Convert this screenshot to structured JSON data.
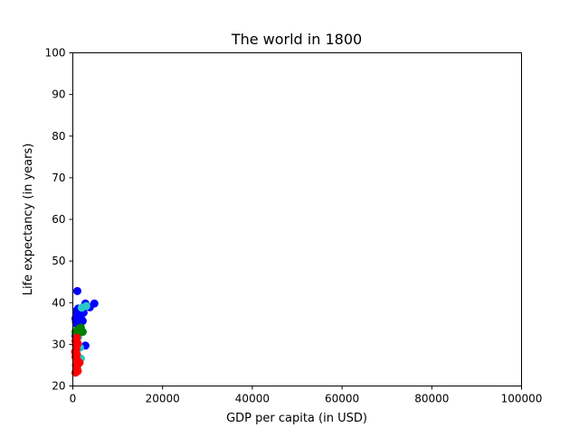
{
  "chart_data": {
    "type": "scatter",
    "title": "The world in 1800",
    "xlabel": "GDP per capita (in USD)",
    "ylabel": "Life expectancy (in years)",
    "xlim": [
      0,
      100000
    ],
    "ylim": [
      20,
      100
    ],
    "xticks": [
      0,
      20000,
      40000,
      60000,
      80000,
      100000
    ],
    "yticks": [
      20,
      30,
      40,
      50,
      60,
      70,
      80,
      90,
      100
    ],
    "grid": false,
    "colors": {
      "blue": "#0000ff",
      "cyan": "#2ac8c8",
      "green": "#008000",
      "red": "#ff0000"
    },
    "points": [
      {
        "x": 1000,
        "y": 42.8,
        "color": "blue"
      },
      {
        "x": 1200,
        "y": 38.6,
        "color": "blue"
      },
      {
        "x": 800,
        "y": 38.0,
        "color": "blue"
      },
      {
        "x": 1600,
        "y": 37.5,
        "color": "blue"
      },
      {
        "x": 2000,
        "y": 38.2,
        "color": "blue"
      },
      {
        "x": 900,
        "y": 37.0,
        "color": "blue"
      },
      {
        "x": 1400,
        "y": 36.6,
        "color": "blue"
      },
      {
        "x": 600,
        "y": 36.2,
        "color": "blue"
      },
      {
        "x": 1100,
        "y": 35.8,
        "color": "blue"
      },
      {
        "x": 1800,
        "y": 36.4,
        "color": "blue"
      },
      {
        "x": 700,
        "y": 35.4,
        "color": "blue"
      },
      {
        "x": 1300,
        "y": 35.0,
        "color": "blue"
      },
      {
        "x": 1000,
        "y": 34.6,
        "color": "blue"
      },
      {
        "x": 1500,
        "y": 34.2,
        "color": "blue"
      },
      {
        "x": 2400,
        "y": 37.6,
        "color": "blue"
      },
      {
        "x": 2800,
        "y": 39.8,
        "color": "blue"
      },
      {
        "x": 3800,
        "y": 38.9,
        "color": "blue"
      },
      {
        "x": 4800,
        "y": 39.8,
        "color": "blue"
      },
      {
        "x": 2800,
        "y": 29.7,
        "color": "blue"
      },
      {
        "x": 800,
        "y": 33.0,
        "color": "blue"
      },
      {
        "x": 1200,
        "y": 32.6,
        "color": "blue"
      },
      {
        "x": 600,
        "y": 32.0,
        "color": "blue"
      },
      {
        "x": 2200,
        "y": 35.6,
        "color": "blue"
      },
      {
        "x": 1600,
        "y": 33.6,
        "color": "blue"
      },
      {
        "x": 3000,
        "y": 39.2,
        "color": "cyan"
      },
      {
        "x": 2000,
        "y": 38.8,
        "color": "cyan"
      },
      {
        "x": 1200,
        "y": 31.8,
        "color": "cyan"
      },
      {
        "x": 1600,
        "y": 29.2,
        "color": "cyan"
      },
      {
        "x": 1800,
        "y": 26.6,
        "color": "cyan"
      },
      {
        "x": 1000,
        "y": 24.5,
        "color": "cyan"
      },
      {
        "x": 1400,
        "y": 33.8,
        "color": "green"
      },
      {
        "x": 1000,
        "y": 33.4,
        "color": "green"
      },
      {
        "x": 600,
        "y": 33.0,
        "color": "green"
      },
      {
        "x": 1800,
        "y": 34.0,
        "color": "green"
      },
      {
        "x": 2200,
        "y": 33.0,
        "color": "green"
      },
      {
        "x": 800,
        "y": 32.2,
        "color": "green"
      },
      {
        "x": 1200,
        "y": 32.8,
        "color": "green"
      },
      {
        "x": 900,
        "y": 31.6,
        "color": "red"
      },
      {
        "x": 600,
        "y": 30.8,
        "color": "red"
      },
      {
        "x": 1100,
        "y": 30.2,
        "color": "red"
      },
      {
        "x": 700,
        "y": 29.6,
        "color": "red"
      },
      {
        "x": 800,
        "y": 28.9,
        "color": "red"
      },
      {
        "x": 500,
        "y": 28.2,
        "color": "red"
      },
      {
        "x": 900,
        "y": 27.6,
        "color": "red"
      },
      {
        "x": 600,
        "y": 27.0,
        "color": "red"
      },
      {
        "x": 1000,
        "y": 26.2,
        "color": "red"
      },
      {
        "x": 1500,
        "y": 25.6,
        "color": "red"
      },
      {
        "x": 700,
        "y": 25.0,
        "color": "red"
      },
      {
        "x": 900,
        "y": 24.2,
        "color": "red"
      },
      {
        "x": 1100,
        "y": 23.6,
        "color": "red"
      },
      {
        "x": 600,
        "y": 23.2,
        "color": "red"
      }
    ]
  }
}
